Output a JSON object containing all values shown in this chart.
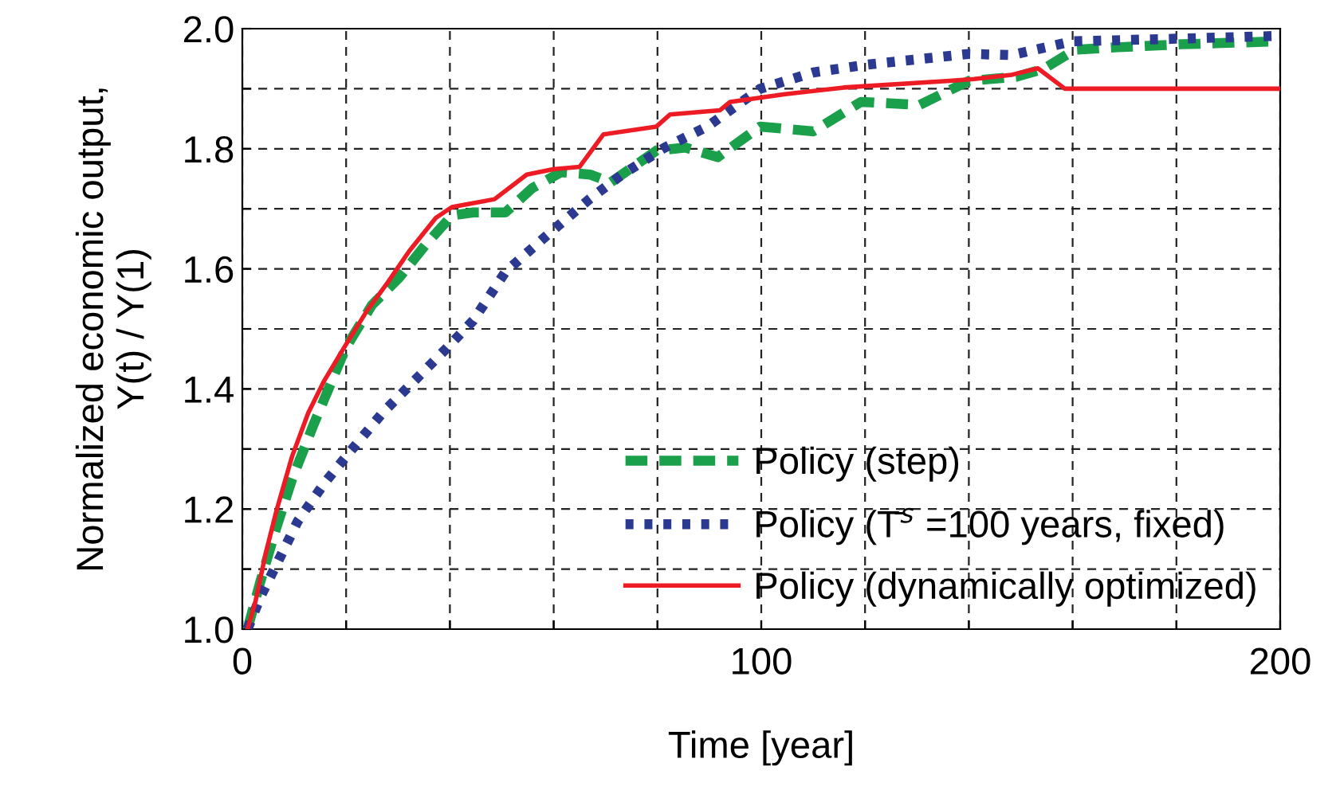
{
  "chart_data": {
    "type": "line",
    "xlabel": "Time [year]",
    "ylabel": "Normalized economic output,\nY(t) / Y(1)",
    "xlim": [
      0,
      200
    ],
    "ylim": [
      1.0,
      2.0
    ],
    "xticks": [
      0,
      {
        "value": 20,
        "label": null
      },
      {
        "value": 40,
        "label": null
      },
      {
        "value": 60,
        "label": null
      },
      {
        "value": 80,
        "label": null
      },
      100,
      {
        "value": 120,
        "label": null
      },
      {
        "value": 140,
        "label": null
      },
      {
        "value": 160,
        "label": null
      },
      {
        "value": 180,
        "label": null
      },
      200
    ],
    "yticks": [
      {
        "value": 1.0,
        "label": "1.0"
      },
      {
        "value": 1.1,
        "label": null
      },
      {
        "value": 1.2,
        "label": "1.2"
      },
      {
        "value": 1.3,
        "label": null
      },
      {
        "value": 1.4,
        "label": "1.4"
      },
      {
        "value": 1.5,
        "label": null
      },
      {
        "value": 1.6,
        "label": "1.6"
      },
      {
        "value": 1.7,
        "label": null
      },
      {
        "value": 1.8,
        "label": "1.8"
      },
      {
        "value": 1.9,
        "label": null
      },
      {
        "value": 2.0,
        "label": "2.0"
      }
    ],
    "grid": true,
    "legend": "bottom right",
    "series": [
      {
        "name": "Policy (step)",
        "color": "#1aa04a",
        "line_style": "dashed",
        "x": [
          1,
          3.5,
          6.6,
          9.6,
          13.7,
          19.9,
          25,
          30.2,
          35.3,
          40.4,
          44.5,
          50.7,
          55.8,
          61.4,
          67,
          71,
          79.8,
          85.4,
          91.6,
          99.8,
          110,
          119.2,
          130.5,
          140,
          149.2,
          154.4,
          160.5,
          168.7,
          181,
          200
        ],
        "values": [
          1.0,
          1.08,
          1.17,
          1.25,
          1.34,
          1.468,
          1.54,
          1.585,
          1.64,
          1.689,
          1.694,
          1.694,
          1.734,
          1.761,
          1.757,
          1.744,
          1.797,
          1.802,
          1.786,
          1.837,
          1.829,
          1.878,
          1.873,
          1.913,
          1.92,
          1.933,
          1.965,
          1.969,
          1.974,
          1.979
        ]
      },
      {
        "name": "Policy (T̄$^{s}$ =100 years, fixed)",
        "color": "#2b3990",
        "line_style": "dotted",
        "x": [
          1,
          3.5,
          6.6,
          10.7,
          15.8,
          20.9,
          27,
          33.2,
          39.4,
          44.5,
          50.7,
          57.8,
          67,
          73.2,
          81.4,
          89.6,
          99.8,
          110,
          120.2,
          140,
          148.2,
          160,
          179,
          200
        ],
        "values": [
          1.0,
          1.054,
          1.108,
          1.18,
          1.243,
          1.297,
          1.36,
          1.414,
          1.468,
          1.514,
          1.595,
          1.649,
          1.717,
          1.757,
          1.802,
          1.837,
          1.9,
          1.927,
          1.94,
          1.958,
          1.956,
          1.979,
          1.983,
          1.988
        ]
      },
      {
        "name": "Policy (dynamically optimized)",
        "color": "#ed1c24",
        "line_style": "solid",
        "x": [
          1,
          2.5,
          4.5,
          6.6,
          9.6,
          12.7,
          15.8,
          19.9,
          24,
          28,
          32.2,
          37.3,
          40.4,
          48.6,
          54.8,
          59.9,
          65,
          69.6,
          79.8,
          82.4,
          92,
          94,
          104.6,
          115.9,
          136.3,
          141,
          148.2,
          153.3,
          158.5,
          200
        ],
        "values": [
          1.0,
          1.045,
          1.126,
          1.198,
          1.288,
          1.36,
          1.414,
          1.473,
          1.53,
          1.577,
          1.63,
          1.685,
          1.703,
          1.716,
          1.757,
          1.766,
          1.77,
          1.824,
          1.837,
          1.857,
          1.864,
          1.878,
          1.891,
          1.902,
          1.913,
          1.916,
          1.923,
          1.934,
          1.9,
          1.9
        ]
      }
    ]
  }
}
